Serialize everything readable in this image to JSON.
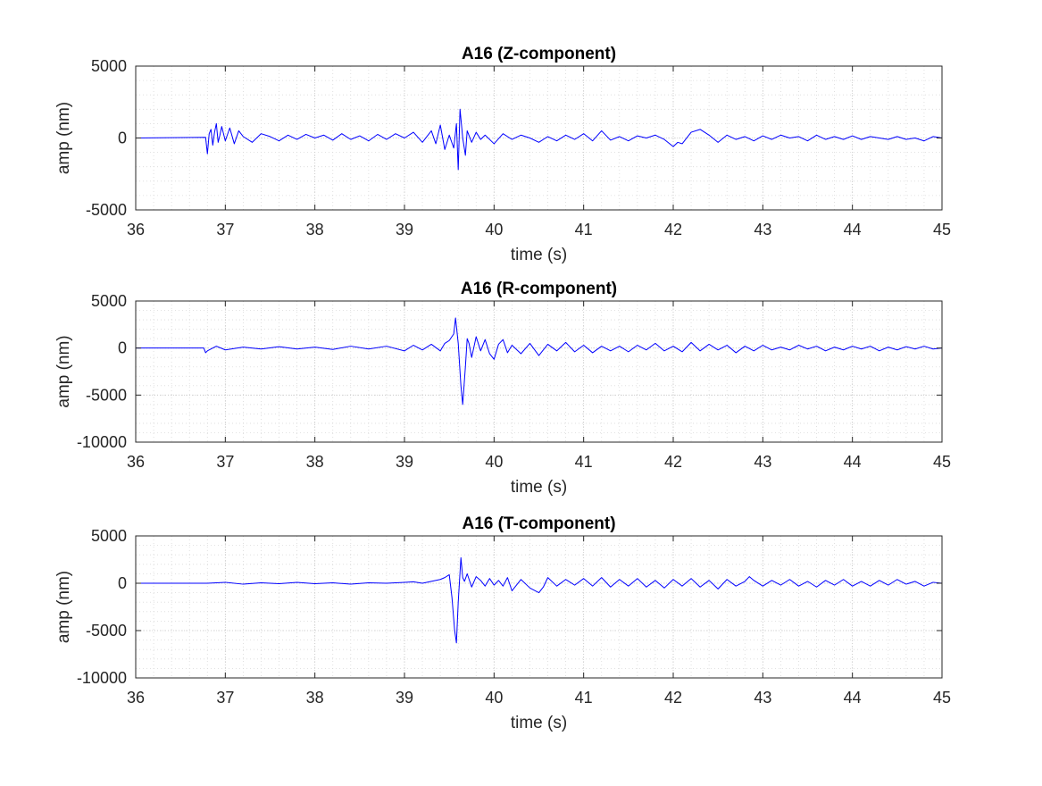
{
  "chart_data": [
    {
      "type": "line",
      "title": "A16 (Z-component)",
      "xlabel": "time (s)",
      "ylabel": "amp (nm)",
      "xlim": [
        36,
        45
      ],
      "ylim": [
        -5000,
        5000
      ],
      "xticks": [
        36,
        37,
        38,
        39,
        40,
        41,
        42,
        43,
        44,
        45
      ],
      "yticks": [
        -5000,
        0,
        5000
      ],
      "grid": "on",
      "minor_grid": "on",
      "series": [
        {
          "color": "#0000ff",
          "x": [
            36.0,
            36.78,
            36.8,
            36.82,
            36.84,
            36.86,
            36.88,
            36.9,
            36.92,
            36.94,
            36.96,
            37.0,
            37.05,
            37.1,
            37.15,
            37.2,
            37.3,
            37.4,
            37.5,
            37.6,
            37.7,
            37.8,
            37.9,
            38.0,
            38.1,
            38.2,
            38.3,
            38.4,
            38.5,
            38.6,
            38.7,
            38.8,
            38.9,
            39.0,
            39.1,
            39.2,
            39.3,
            39.35,
            39.4,
            39.45,
            39.5,
            39.55,
            39.58,
            39.6,
            39.62,
            39.65,
            39.68,
            39.7,
            39.75,
            39.8,
            39.85,
            39.9,
            40.0,
            40.1,
            40.2,
            40.3,
            40.4,
            40.5,
            40.6,
            40.7,
            40.8,
            40.9,
            41.0,
            41.1,
            41.2,
            41.3,
            41.4,
            41.5,
            41.6,
            41.7,
            41.8,
            41.9,
            42.0,
            42.05,
            42.1,
            42.2,
            42.3,
            42.4,
            42.5,
            42.6,
            42.7,
            42.8,
            42.9,
            43.0,
            43.1,
            43.2,
            43.3,
            43.4,
            43.5,
            43.6,
            43.7,
            43.8,
            43.9,
            44.0,
            44.1,
            44.2,
            44.3,
            44.4,
            44.5,
            44.6,
            44.7,
            44.8,
            44.9,
            45.0
          ],
          "y": [
            0,
            50,
            -1100,
            300,
            600,
            -500,
            400,
            1000,
            -300,
            200,
            800,
            -200,
            700,
            -400,
            500,
            100,
            -300,
            300,
            100,
            -200,
            200,
            -100,
            250,
            0,
            200,
            -150,
            300,
            -100,
            150,
            -200,
            250,
            -100,
            300,
            0,
            400,
            -300,
            500,
            -400,
            900,
            -800,
            200,
            -700,
            1000,
            -2200,
            2000,
            0,
            -1200,
            500,
            -300,
            400,
            -100,
            200,
            -400,
            300,
            -100,
            200,
            0,
            -300,
            100,
            -200,
            200,
            -100,
            300,
            -200,
            500,
            -150,
            100,
            -200,
            150,
            0,
            200,
            -100,
            -600,
            -300,
            -400,
            400,
            600,
            200,
            -300,
            200,
            -100,
            100,
            -200,
            150,
            -100,
            200,
            0,
            100,
            -200,
            200,
            -100,
            100,
            -100,
            150,
            -100,
            100,
            0,
            -100,
            100,
            -100,
            0,
            -200,
            100,
            0
          ]
        }
      ]
    },
    {
      "type": "line",
      "title": "A16 (R-component)",
      "xlabel": "time (s)",
      "ylabel": "amp (nm)",
      "xlim": [
        36,
        45
      ],
      "ylim": [
        -10000,
        5000
      ],
      "xticks": [
        36,
        37,
        38,
        39,
        40,
        41,
        42,
        43,
        44,
        45
      ],
      "yticks": [
        -10000,
        -5000,
        0,
        5000
      ],
      "grid": "on",
      "minor_grid": "on",
      "series": [
        {
          "color": "#0000ff",
          "x": [
            36.0,
            36.76,
            36.78,
            36.8,
            36.9,
            37.0,
            37.2,
            37.4,
            37.6,
            37.8,
            38.0,
            38.2,
            38.4,
            38.6,
            38.8,
            39.0,
            39.1,
            39.2,
            39.3,
            39.4,
            39.45,
            39.5,
            39.55,
            39.57,
            39.6,
            39.63,
            39.65,
            39.68,
            39.7,
            39.72,
            39.75,
            39.8,
            39.85,
            39.9,
            39.95,
            40.0,
            40.05,
            40.1,
            40.15,
            40.2,
            40.3,
            40.4,
            40.5,
            40.6,
            40.7,
            40.8,
            40.9,
            41.0,
            41.1,
            41.2,
            41.3,
            41.4,
            41.5,
            41.6,
            41.7,
            41.8,
            41.9,
            42.0,
            42.1,
            42.2,
            42.3,
            42.4,
            42.5,
            42.6,
            42.7,
            42.8,
            42.9,
            43.0,
            43.1,
            43.2,
            43.3,
            43.4,
            43.5,
            43.6,
            43.7,
            43.8,
            43.9,
            44.0,
            44.1,
            44.2,
            44.3,
            44.4,
            44.5,
            44.6,
            44.7,
            44.8,
            44.9,
            45.0
          ],
          "y": [
            0,
            0,
            -500,
            -300,
            200,
            -200,
            100,
            -100,
            150,
            -100,
            100,
            -150,
            200,
            -100,
            200,
            -300,
            300,
            -200,
            400,
            -300,
            500,
            800,
            1500,
            3200,
            500,
            -4000,
            -6000,
            -2000,
            1000,
            500,
            -1000,
            1200,
            -300,
            900,
            -600,
            -1200,
            400,
            900,
            -500,
            300,
            -600,
            500,
            -800,
            400,
            -300,
            600,
            -400,
            300,
            -500,
            200,
            -300,
            200,
            -400,
            300,
            -200,
            500,
            -300,
            200,
            -400,
            600,
            -300,
            400,
            -200,
            300,
            -500,
            200,
            -300,
            300,
            -200,
            100,
            -200,
            300,
            -100,
            200,
            -300,
            100,
            -200,
            200,
            -100,
            200,
            -300,
            100,
            -200,
            150,
            -100,
            200,
            -100,
            0
          ]
        }
      ]
    },
    {
      "type": "line",
      "title": "A16 (T-component)",
      "xlabel": "time (s)",
      "ylabel": "amp (nm)",
      "xlim": [
        36,
        45
      ],
      "ylim": [
        -10000,
        5000
      ],
      "xticks": [
        36,
        37,
        38,
        39,
        40,
        41,
        42,
        43,
        44,
        45
      ],
      "yticks": [
        -10000,
        -5000,
        0,
        5000
      ],
      "grid": "on",
      "minor_grid": "on",
      "series": [
        {
          "color": "#0000ff",
          "x": [
            36.0,
            36.8,
            37.0,
            37.2,
            37.4,
            37.6,
            37.8,
            38.0,
            38.2,
            38.4,
            38.6,
            38.8,
            39.0,
            39.1,
            39.2,
            39.3,
            39.4,
            39.45,
            39.5,
            39.53,
            39.56,
            39.58,
            39.6,
            39.63,
            39.65,
            39.67,
            39.7,
            39.75,
            39.8,
            39.85,
            39.9,
            39.95,
            40.0,
            40.05,
            40.1,
            40.15,
            40.2,
            40.3,
            40.4,
            40.5,
            40.55,
            40.6,
            40.7,
            40.8,
            40.9,
            41.0,
            41.1,
            41.2,
            41.3,
            41.4,
            41.5,
            41.6,
            41.7,
            41.8,
            41.9,
            42.0,
            42.1,
            42.2,
            42.3,
            42.4,
            42.5,
            42.6,
            42.7,
            42.8,
            42.85,
            42.9,
            43.0,
            43.1,
            43.2,
            43.3,
            43.4,
            43.5,
            43.6,
            43.7,
            43.8,
            43.9,
            44.0,
            44.1,
            44.2,
            44.3,
            44.4,
            44.5,
            44.6,
            44.7,
            44.8,
            44.9,
            45.0
          ],
          "y": [
            0,
            0,
            100,
            -100,
            50,
            -50,
            100,
            -50,
            50,
            -100,
            50,
            0,
            100,
            150,
            0,
            200,
            400,
            600,
            900,
            -1500,
            -5000,
            -6300,
            -2000,
            2700,
            600,
            200,
            1000,
            -400,
            700,
            300,
            -300,
            500,
            -200,
            300,
            -300,
            600,
            -800,
            400,
            -500,
            -1000,
            -400,
            600,
            -300,
            400,
            -200,
            500,
            -300,
            600,
            -400,
            400,
            -300,
            500,
            -400,
            300,
            -500,
            400,
            -300,
            500,
            -400,
            300,
            -600,
            400,
            -300,
            200,
            700,
            300,
            -300,
            300,
            -200,
            400,
            -300,
            200,
            -400,
            300,
            -200,
            400,
            -300,
            200,
            -300,
            300,
            -200,
            400,
            -100,
            200,
            -300,
            100,
            0
          ]
        }
      ]
    }
  ]
}
